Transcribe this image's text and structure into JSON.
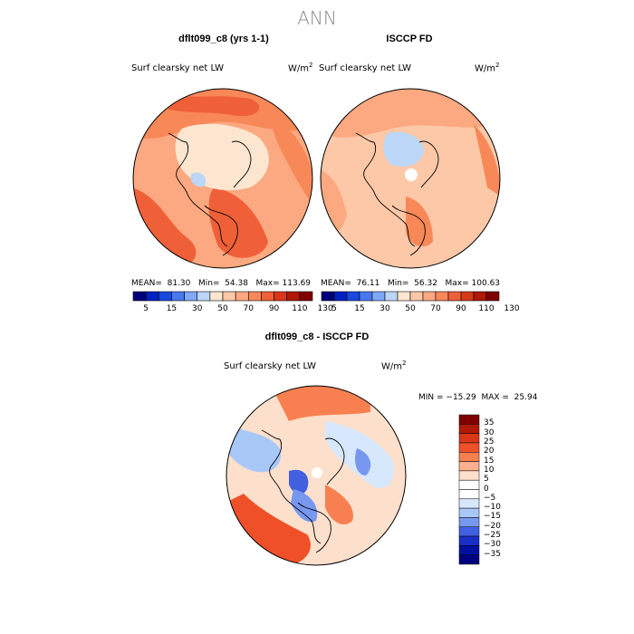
{
  "page": {
    "title": "ANN"
  },
  "panels": [
    {
      "title": "dflt099_c8 (yrs 1-1)",
      "variable": "Surf clearsky net LW",
      "units": "W/m",
      "units_sup": "2",
      "stats": "MEAN=  81.30   Min=  54.38   Max= 113.69"
    },
    {
      "title": "ISCCP FD",
      "variable": "Surf clearsky net LW",
      "units": "W/m",
      "units_sup": "2",
      "stats": "MEAN=  76.11   Min=  56.32   Max= 100.63"
    }
  ],
  "diff_panel": {
    "title": "dflt099_c8 - ISCCP FD",
    "variable": "Surf clearsky net LW",
    "units": "W/m",
    "units_sup": "2",
    "stats": "MIN = −15.29  MAX =  25.94"
  },
  "colorbar": {
    "labels": [
      "5",
      "15",
      "30",
      "50",
      "70",
      "90",
      "110",
      "130"
    ],
    "colors": [
      "#00007a",
      "#0020c0",
      "#1848e0",
      "#4878f0",
      "#80a8f8",
      "#bcd6f8",
      "#fde6d0",
      "#fcc8a8",
      "#fca880",
      "#f88858",
      "#f06038",
      "#d83818",
      "#b01808",
      "#800000"
    ]
  },
  "diff_colorbar": {
    "labels": [
      "35",
      "30",
      "25",
      "20",
      "15",
      "10",
      "5",
      "0",
      "−5",
      "−10",
      "−15",
      "−20",
      "−25",
      "−30",
      "−35"
    ],
    "colors": [
      "#800000",
      "#b01808",
      "#d83818",
      "#f05028",
      "#f88050",
      "#fcb090",
      "#fde0cc",
      "#ffffff",
      "#d8e8fc",
      "#a8c8f8",
      "#7898f0",
      "#4060e0",
      "#1830c8",
      "#0010a0",
      "#000080"
    ]
  },
  "chart_data": [
    {
      "type": "heatmap",
      "title": "dflt099_c8 (yrs 1-1)",
      "variable": "Surf clearsky net LW",
      "units": "W/m2",
      "mean": 81.3,
      "min": 54.38,
      "max": 113.69,
      "levels": [
        5,
        15,
        30,
        50,
        70,
        90,
        110,
        130
      ]
    },
    {
      "type": "heatmap",
      "title": "ISCCP FD",
      "variable": "Surf clearsky net LW",
      "units": "W/m2",
      "mean": 76.11,
      "min": 56.32,
      "max": 100.63,
      "levels": [
        5,
        15,
        30,
        50,
        70,
        90,
        110,
        130
      ]
    },
    {
      "type": "heatmap",
      "title": "dflt099_c8 - ISCCP FD",
      "variable": "Surf clearsky net LW",
      "units": "W/m2",
      "min": -15.29,
      "max": 25.94,
      "levels": [
        -35,
        -30,
        -25,
        -20,
        -15,
        -10,
        -5,
        0,
        5,
        10,
        15,
        20,
        25,
        30,
        35
      ]
    }
  ]
}
